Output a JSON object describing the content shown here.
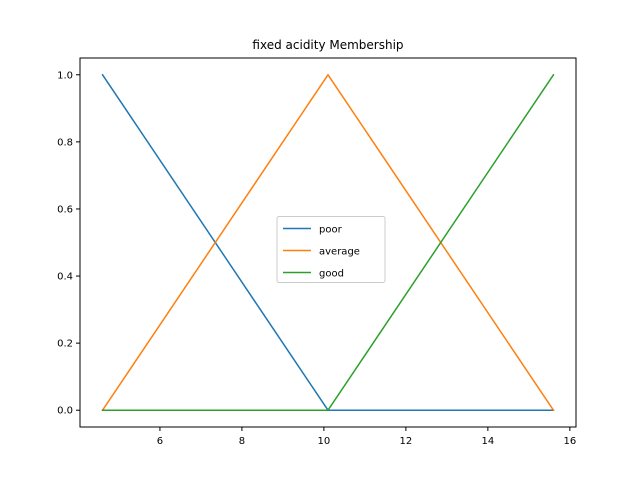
{
  "chart_data": {
    "type": "line",
    "title": "fixed acidity Membership",
    "xlabel": "",
    "ylabel": "",
    "xlim": [
      4.05,
      16.15
    ],
    "ylim": [
      -0.05,
      1.05
    ],
    "x_ticks": [
      6,
      8,
      10,
      12,
      14,
      16
    ],
    "y_ticks": [
      0.0,
      0.2,
      0.4,
      0.6,
      0.8,
      1.0
    ],
    "x_tick_labels": [
      "6",
      "8",
      "10",
      "12",
      "14",
      "16"
    ],
    "y_tick_labels": [
      "0.0",
      "0.2",
      "0.4",
      "0.6",
      "0.8",
      "1.0"
    ],
    "grid": false,
    "legend_position": "center",
    "series": [
      {
        "name": "poor",
        "color": "#1f77b4",
        "x": [
          4.6,
          10.1,
          15.6
        ],
        "y": [
          1.0,
          0.0,
          0.0
        ]
      },
      {
        "name": "average",
        "color": "#ff7f0e",
        "x": [
          4.6,
          10.1,
          15.6
        ],
        "y": [
          0.0,
          1.0,
          0.0
        ]
      },
      {
        "name": "good",
        "color": "#2ca02c",
        "x": [
          4.6,
          10.1,
          15.6
        ],
        "y": [
          0.0,
          0.0,
          1.0
        ]
      }
    ]
  }
}
